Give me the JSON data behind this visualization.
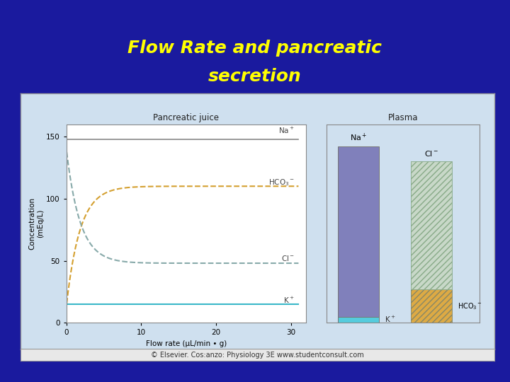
{
  "title_line1": "Flow Rate and pancreatic",
  "title_line2": "secretion",
  "title_color": "#FFFF00",
  "bg_color": "#1a1a9e",
  "outer_panel_bg": "#cfe0ef",
  "plot_bg": "#ffffff",
  "copyright_bg": "#e8e8e8",
  "xlabel": "Flow rate (μL/min • g)",
  "ylabel": "Concentration\n(mEq/L)",
  "xlim": [
    0,
    32
  ],
  "ylim": [
    0,
    160
  ],
  "yticks": [
    0,
    50,
    100,
    150
  ],
  "xticks": [
    0,
    10,
    20,
    30
  ],
  "pancreatic_juice_label": "Pancreatic juice",
  "plasma_label": "Plasma",
  "copyright": "© Elsevier. Cos:anzo: Physiology 3E www.studentconsult.com",
  "na_line_color": "#888888",
  "k_line_color": "#3ab8c8",
  "hco3_line_color": "#d4a030",
  "cl_line_color": "#88aaaa",
  "plasma_na_color": "#8080bb",
  "plasma_k_color": "#55ccdd",
  "plasma_cl_color": "#c8d8c8",
  "plasma_hco3_color": "#ddaa44",
  "plasma_na_height": 142,
  "plasma_k_height": 5,
  "plasma_cl_height": 103,
  "plasma_hco3_height": 27
}
